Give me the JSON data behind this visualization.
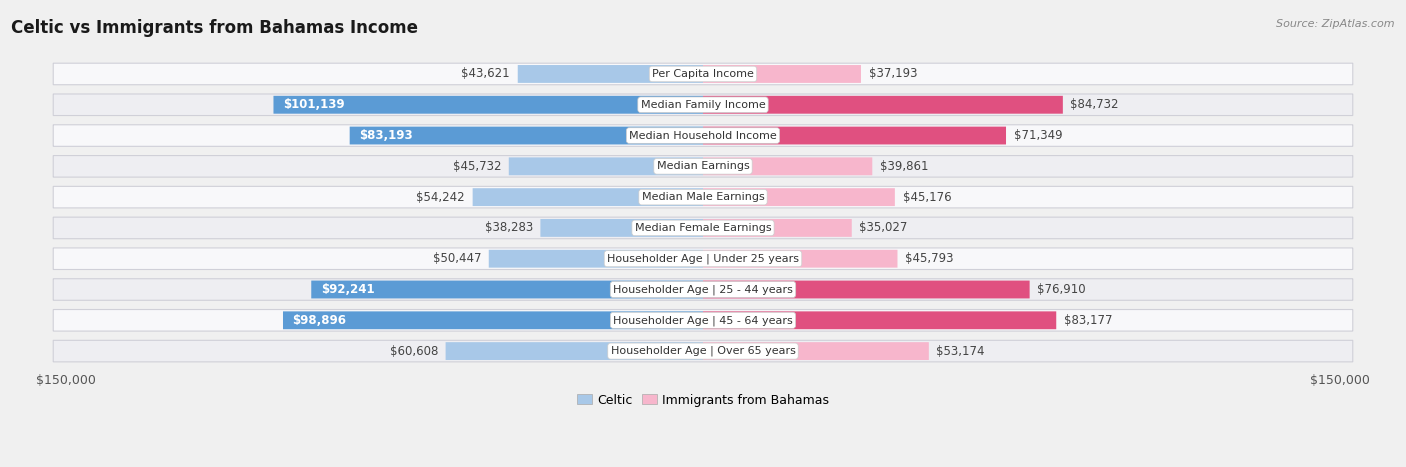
{
  "title": "Celtic vs Immigrants from Bahamas Income",
  "source": "Source: ZipAtlas.com",
  "categories": [
    "Per Capita Income",
    "Median Family Income",
    "Median Household Income",
    "Median Earnings",
    "Median Male Earnings",
    "Median Female Earnings",
    "Householder Age | Under 25 years",
    "Householder Age | 25 - 44 years",
    "Householder Age | 45 - 64 years",
    "Householder Age | Over 65 years"
  ],
  "celtic_values": [
    43621,
    101139,
    83193,
    45732,
    54242,
    38283,
    50447,
    92241,
    98896,
    60608
  ],
  "bahamas_values": [
    37193,
    84732,
    71349,
    39861,
    45176,
    35027,
    45793,
    76910,
    83177,
    53174
  ],
  "celtic_labels": [
    "$43,621",
    "$101,139",
    "$83,193",
    "$45,732",
    "$54,242",
    "$38,283",
    "$50,447",
    "$92,241",
    "$98,896",
    "$60,608"
  ],
  "bahamas_labels": [
    "$37,193",
    "$84,732",
    "$71,349",
    "$39,861",
    "$45,176",
    "$35,027",
    "$45,793",
    "$76,910",
    "$83,177",
    "$53,174"
  ],
  "celtic_color_light": "#a8c8e8",
  "celtic_color_dark": "#5b9bd5",
  "bahamas_color_light": "#f7b6cc",
  "bahamas_color_dark": "#e05080",
  "max_value": 150000,
  "bg_color": "#f0f0f0",
  "row_bg_even": "#f8f8fa",
  "row_bg_odd": "#eeeef2",
  "white_threshold_celtic": 75000,
  "white_threshold_bahamas": 65000,
  "label_fontsize": 8.5,
  "cat_fontsize": 8.0,
  "title_fontsize": 12,
  "source_fontsize": 8
}
